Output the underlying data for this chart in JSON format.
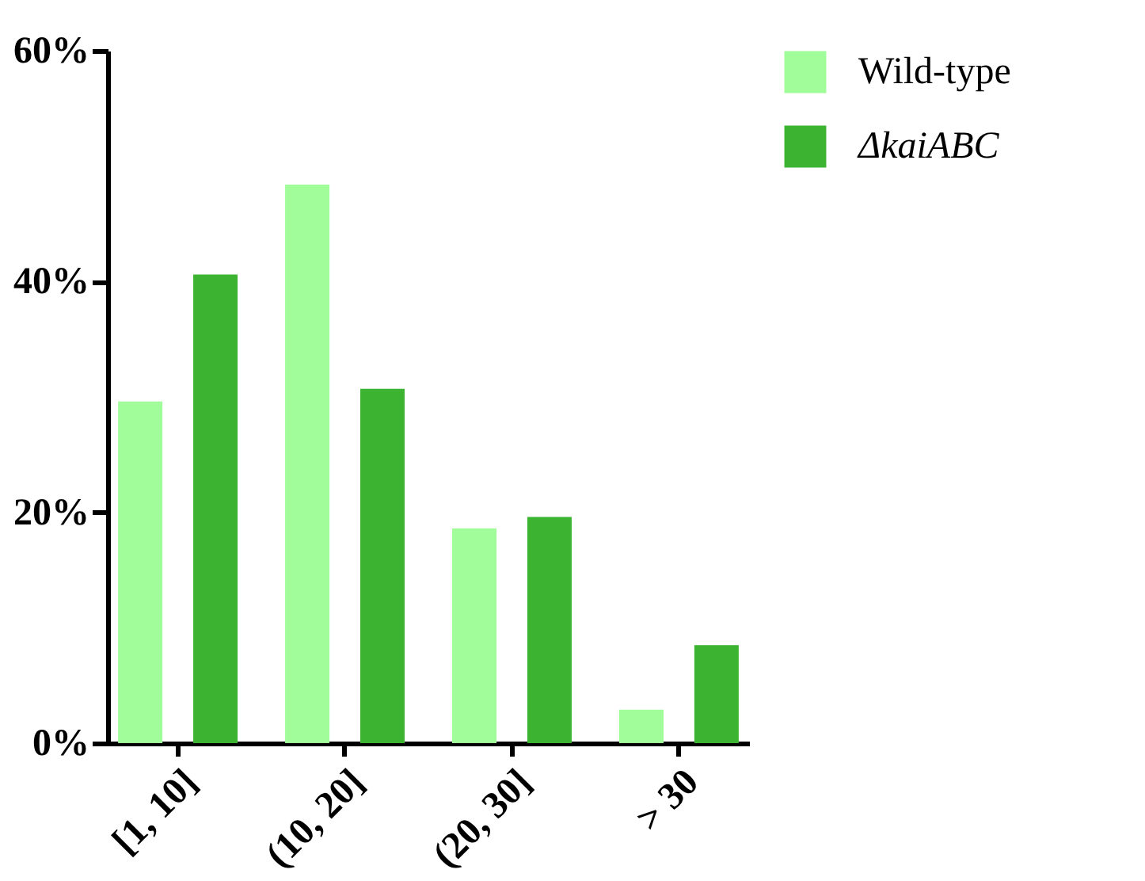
{
  "chart_data": {
    "type": "bar",
    "categories": [
      "[1, 10]",
      "(10, 20]",
      "(20, 30]",
      "> 30"
    ],
    "series": [
      {
        "name": "Wild-type",
        "color": "#a0fd9a",
        "values": [
          29.6,
          48.4,
          18.6,
          2.9
        ]
      },
      {
        "name": "ΔkaiABC",
        "color": "#3db332",
        "values": [
          40.6,
          30.7,
          19.6,
          8.5
        ]
      }
    ],
    "ylim": [
      0,
      60
    ],
    "yticks": [
      {
        "value": 0,
        "label": "0%"
      },
      {
        "value": 20,
        "label": "20%"
      },
      {
        "value": 40,
        "label": "40%"
      },
      {
        "value": 60,
        "label": "60%"
      }
    ],
    "grid": false,
    "legend": "right"
  }
}
